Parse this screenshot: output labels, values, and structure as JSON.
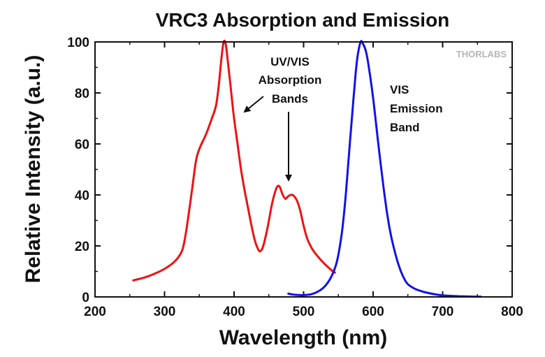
{
  "chart_data": {
    "type": "line",
    "title": "VRC3 Absorption and Emission",
    "xlabel": "Wavelength (nm)",
    "ylabel": "Relative Intensity (a.u.)",
    "xlim": [
      200,
      800
    ],
    "ylim": [
      0,
      100
    ],
    "xticks": [
      200,
      300,
      400,
      500,
      600,
      700,
      800
    ],
    "yticks": [
      0,
      20,
      40,
      60,
      80,
      100
    ],
    "grid": false,
    "legend": "none",
    "series": [
      {
        "color": "#ee1111",
        "points": [
          [
            255,
            6.5
          ],
          [
            270,
            7.5
          ],
          [
            285,
            9
          ],
          [
            300,
            11
          ],
          [
            315,
            14
          ],
          [
            325,
            18
          ],
          [
            330,
            24
          ],
          [
            335,
            33
          ],
          [
            340,
            43
          ],
          [
            345,
            53
          ],
          [
            350,
            58
          ],
          [
            360,
            64
          ],
          [
            368,
            70
          ],
          [
            374,
            75
          ],
          [
            378,
            83
          ],
          [
            382,
            94
          ],
          [
            385,
            100
          ],
          [
            388,
            99
          ],
          [
            392,
            90
          ],
          [
            396,
            80
          ],
          [
            400,
            70
          ],
          [
            405,
            60
          ],
          [
            410,
            50
          ],
          [
            415,
            42
          ],
          [
            420,
            35
          ],
          [
            425,
            28
          ],
          [
            430,
            22
          ],
          [
            435,
            18.5
          ],
          [
            438,
            18
          ],
          [
            442,
            20
          ],
          [
            448,
            27
          ],
          [
            455,
            37
          ],
          [
            460,
            42
          ],
          [
            463,
            43.5
          ],
          [
            466,
            43
          ],
          [
            470,
            40
          ],
          [
            474,
            38.5
          ],
          [
            478,
            39.5
          ],
          [
            484,
            40
          ],
          [
            490,
            38
          ],
          [
            495,
            34
          ],
          [
            500,
            28
          ],
          [
            505,
            23
          ],
          [
            512,
            19
          ],
          [
            520,
            16
          ],
          [
            530,
            13
          ],
          [
            540,
            10.5
          ],
          [
            545,
            9.5
          ]
        ]
      },
      {
        "color": "#1111ee",
        "points": [
          [
            478,
            1.3
          ],
          [
            483,
            1
          ],
          [
            490,
            0.8
          ],
          [
            500,
            0.7
          ],
          [
            510,
            1
          ],
          [
            520,
            2
          ],
          [
            530,
            4
          ],
          [
            540,
            8
          ],
          [
            548,
            14
          ],
          [
            555,
            25
          ],
          [
            560,
            38
          ],
          [
            565,
            55
          ],
          [
            570,
            72
          ],
          [
            575,
            88
          ],
          [
            578,
            95
          ],
          [
            582,
            100
          ],
          [
            585,
            99.5
          ],
          [
            590,
            96
          ],
          [
            595,
            88
          ],
          [
            600,
            78
          ],
          [
            605,
            66
          ],
          [
            610,
            54
          ],
          [
            615,
            43
          ],
          [
            620,
            33
          ],
          [
            625,
            25
          ],
          [
            630,
            19
          ],
          [
            635,
            14
          ],
          [
            640,
            10
          ],
          [
            645,
            7
          ],
          [
            650,
            5
          ],
          [
            660,
            3.2
          ],
          [
            670,
            2.2
          ],
          [
            680,
            1.5
          ],
          [
            690,
            1
          ],
          [
            700,
            0.6
          ],
          [
            720,
            0.3
          ],
          [
            740,
            0.15
          ],
          [
            755,
            0.1
          ]
        ]
      }
    ],
    "annotations": [
      {
        "lines": [
          "UV/VIS",
          "Absorption",
          "Bands"
        ]
      },
      {
        "lines": [
          "VIS",
          "Emission",
          "Band"
        ]
      }
    ]
  },
  "watermark": {
    "text": "THORLABS"
  }
}
